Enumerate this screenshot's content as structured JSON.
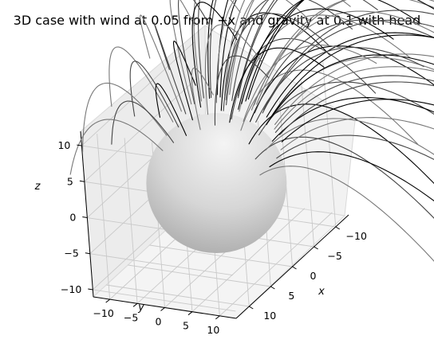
{
  "chart_data": {
    "type": "3d-line-surface",
    "title": "3D case with wind at 0.05 from +x and gravity at 0.1 with head",
    "xlabel": "x",
    "ylabel": "y",
    "zlabel": "z",
    "xlim": [
      -13,
      13
    ],
    "ylim": [
      -13,
      13
    ],
    "zlim": [
      -11,
      12
    ],
    "x_ticks": [
      -10,
      -5,
      0,
      5,
      10
    ],
    "y_ticks": [
      -10,
      -5,
      0,
      5,
      10
    ],
    "z_ticks": [
      -10,
      -5,
      0,
      5,
      10
    ],
    "x_tick_labels": [
      "−10",
      "−5",
      "0",
      "5",
      "10"
    ],
    "y_tick_labels": [
      "−10",
      "−5",
      "0",
      "5",
      "10"
    ],
    "z_tick_labels": [
      "−10",
      "−5",
      "0",
      "5",
      "10"
    ],
    "view": {
      "elev": 45,
      "azim": 45
    },
    "grid": true,
    "sphere": {
      "center": [
        0,
        0,
        0
      ],
      "radius": 10,
      "color": "#bdbdbd"
    },
    "trajectories": {
      "count": 48,
      "start_radius": 10,
      "wind": 0.05,
      "wind_from": "+x",
      "gravity": 0.1,
      "line_colors": [
        "#000000",
        "#444444",
        "#777777"
      ]
    }
  }
}
